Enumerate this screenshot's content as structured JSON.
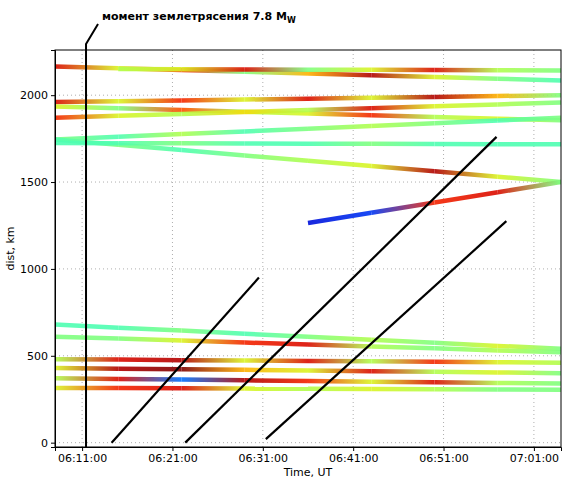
{
  "chart_data": {
    "type": "line",
    "x_label": "Time, UT",
    "y_label": "dist, km",
    "xlim": [
      22080,
      25440
    ],
    "ylim": [
      -25,
      2260
    ],
    "xticks": [
      {
        "value": 22260,
        "label": "06:11:00"
      },
      {
        "value": 22860,
        "label": "06:21:00"
      },
      {
        "value": 23460,
        "label": "06:31:00"
      },
      {
        "value": 24060,
        "label": "06:41:00"
      },
      {
        "value": 24660,
        "label": "06:51:00"
      },
      {
        "value": 25260,
        "label": "07:01:00"
      }
    ],
    "yticks": [
      0,
      500,
      1000,
      1500,
      2000
    ],
    "grid": true,
    "color_range": [
      0,
      1
    ],
    "x": [
      22080,
      22500,
      22920,
      23340,
      23760,
      24180,
      24600,
      25020,
      25440
    ],
    "series": [
      {
        "y": [
          2165,
          2155,
          2145,
          2135,
          2125,
          2115,
          2105,
          2095,
          2085
        ],
        "values": [
          0.9,
          0.6,
          0.85,
          0.5,
          0.7,
          0.95,
          0.6,
          0.5,
          0.45
        ]
      },
      {
        "y": [
          null,
          2150,
          2149,
          2148,
          2147,
          2146,
          2145,
          2144,
          2142
        ],
        "values": [
          null,
          0.55,
          0.6,
          0.9,
          0.5,
          0.6,
          0.9,
          0.55,
          0.5
        ]
      },
      {
        "y": [
          1960,
          1965,
          1970,
          1975,
          1980,
          1985,
          1990,
          1995,
          2000
        ],
        "values": [
          0.9,
          0.6,
          0.85,
          0.6,
          0.9,
          0.6,
          0.95,
          0.7,
          0.5
        ]
      },
      {
        "y": [
          1935,
          1925,
          1915,
          1905,
          1895,
          1885,
          1875,
          1865,
          1855
        ],
        "values": [
          0.6,
          0.5,
          0.8,
          0.55,
          0.6,
          0.85,
          0.55,
          0.6,
          0.5
        ]
      },
      {
        "y": [
          1870,
          1881,
          1892,
          1903,
          1914,
          1925,
          1936,
          1947,
          1958
        ],
        "values": [
          0.85,
          0.6,
          0.55,
          0.65,
          0.55,
          0.9,
          0.6,
          0.55,
          0.5
        ]
      },
      {
        "y": [
          1745,
          1760,
          1776,
          1791,
          1807,
          1823,
          1838,
          1854,
          1870
        ],
        "values": [
          0.5,
          0.45,
          0.55,
          0.45,
          0.5,
          0.55,
          0.5,
          0.45,
          0.5
        ]
      },
      {
        "y": [
          1745,
          1714,
          1684,
          1653,
          1623,
          1592,
          1562,
          1531,
          1500
        ],
        "values": [
          0.45,
          0.5,
          0.45,
          0.5,
          0.55,
          0.6,
          0.95,
          0.6,
          0.5
        ]
      },
      {
        "y": [
          null,
          null,
          null,
          null,
          1264,
          1323,
          1382,
          1441,
          1500
        ],
        "values": [
          null,
          null,
          null,
          null,
          0.1,
          0.15,
          0.85,
          0.9,
          0.5
        ]
      },
      {
        "y": [
          1725,
          1724,
          1723,
          1722,
          1721,
          1720,
          1719,
          1718,
          1717
        ],
        "values": [
          0.45,
          0.45,
          0.5,
          0.45,
          0.45,
          0.5,
          0.45,
          0.45,
          0.45
        ]
      },
      {
        "y": [
          680,
          662,
          645,
          627,
          610,
          592,
          575,
          557,
          540
        ],
        "values": [
          0.45,
          0.45,
          0.5,
          0.45,
          0.5,
          0.55,
          0.5,
          0.6,
          0.5
        ]
      },
      {
        "y": [
          610,
          599,
          588,
          576,
          565,
          554,
          543,
          531,
          520
        ],
        "values": [
          0.5,
          0.5,
          0.6,
          0.85,
          0.9,
          0.55,
          0.5,
          0.55,
          0.5
        ]
      },
      {
        "y": [
          480,
          478,
          475,
          473,
          470,
          468,
          465,
          463,
          460
        ],
        "values": [
          0.55,
          0.9,
          0.95,
          0.6,
          0.9,
          0.55,
          0.85,
          0.6,
          0.55
        ]
      },
      {
        "y": [
          430,
          426,
          423,
          419,
          415,
          411,
          408,
          404,
          400
        ],
        "values": [
          0.6,
          0.95,
          1.0,
          0.7,
          0.6,
          0.9,
          0.55,
          0.6,
          0.5
        ]
      },
      {
        "y": [
          370,
          366,
          363,
          359,
          355,
          351,
          348,
          344,
          340
        ],
        "values": [
          0.55,
          0.9,
          0.2,
          0.95,
          0.85,
          0.6,
          0.9,
          0.55,
          0.5
        ]
      },
      {
        "y": [
          315,
          314,
          313,
          311,
          310,
          309,
          308,
          306,
          305
        ],
        "values": [
          0.6,
          0.85,
          0.9,
          0.6,
          0.55,
          0.6,
          0.55,
          0.5,
          0.5
        ]
      }
    ],
    "lines": [
      {
        "x": [
          22456,
          23434
        ],
        "y": [
          0,
          950
        ],
        "color": "#000000"
      },
      {
        "x": [
          22945,
          25012
        ],
        "y": [
          0,
          1760
        ],
        "color": "#000000"
      },
      {
        "x": [
          23480,
          25077
        ],
        "y": [
          20,
          1275
        ],
        "color": "#000000"
      }
    ],
    "annotations": [
      {
        "x": 22286,
        "text": "момент землетрясения 7.8 MW"
      }
    ]
  }
}
